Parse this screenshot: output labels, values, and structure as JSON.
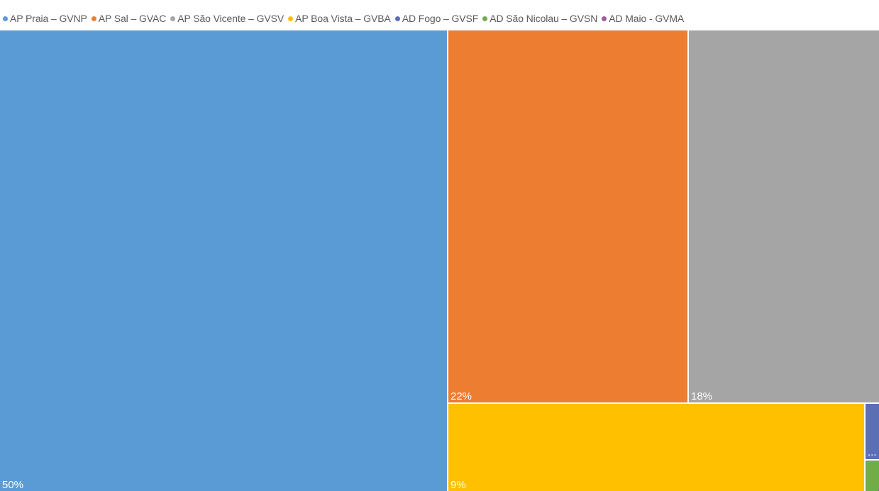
{
  "chart_data": {
    "type": "treemap",
    "title": "",
    "legend_position": "top",
    "series": [
      {
        "name": "AP Praia – GVNP",
        "value": 50,
        "label": "50%",
        "color": "#5B9BD5"
      },
      {
        "name": "AP Sal – GVAC",
        "value": 22,
        "label": "22%",
        "color": "#ED7D31"
      },
      {
        "name": "AP São Vicente – GVSV",
        "value": 18,
        "label": "18%",
        "color": "#A5A5A5"
      },
      {
        "name": "AP Boa Vista – GVBA",
        "value": 9,
        "label": "9%",
        "color": "#FFC000"
      },
      {
        "name": "AD Fogo – GVSF",
        "value": 0.5,
        "label": "...",
        "color": "#5B6FB5"
      },
      {
        "name": "AD São Nicolau – GVSN",
        "value": 0.3,
        "label": "",
        "color": "#70AD47"
      },
      {
        "name": "AD Maio - GVMA",
        "value": 0.1,
        "label": "",
        "color": "#9E5C9E"
      }
    ]
  }
}
